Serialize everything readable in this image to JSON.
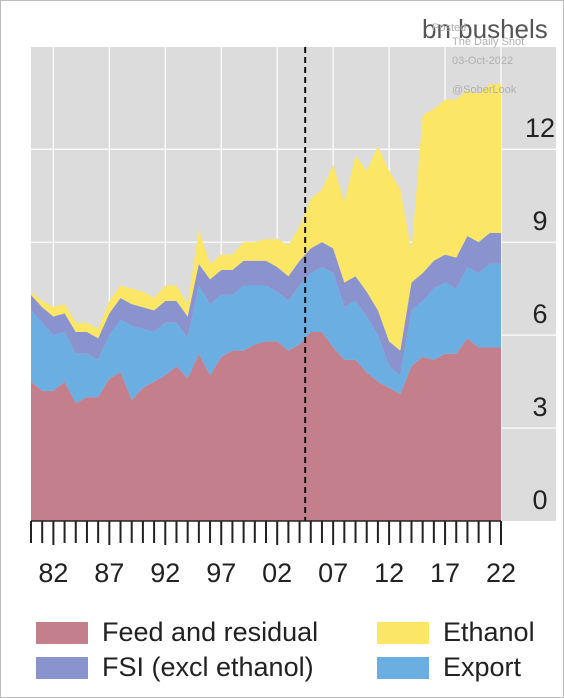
{
  "unit_label": "bn bushels",
  "watermark": {
    "posted": "Posted",
    "source": "The Daily Shot",
    "date": "03-Oct-2022",
    "handle": "@SoberLook"
  },
  "colors": {
    "feed": "#c47f8c",
    "fsi": "#8b93cf",
    "ethanol": "#fbe666",
    "export": "#6aaee2",
    "background": "#dcdcdc",
    "grid": "#ffffff"
  },
  "legend": [
    {
      "key": "feed",
      "label": "Feed and residual"
    },
    {
      "key": "ethanol",
      "label": "Ethanol"
    },
    {
      "key": "fsi",
      "label": "FSI (excl ethanol)"
    },
    {
      "key": "export",
      "label": "Export"
    }
  ],
  "chart_data": {
    "type": "area",
    "stacked": true,
    "x": [
      1980,
      1981,
      1982,
      1983,
      1984,
      1985,
      1986,
      1987,
      1988,
      1989,
      1990,
      1991,
      1992,
      1993,
      1994,
      1995,
      1996,
      1997,
      1998,
      1999,
      2000,
      2001,
      2002,
      2003,
      2004,
      2005,
      2006,
      2007,
      2008,
      2009,
      2010,
      2011,
      2012,
      2013,
      2014,
      2015,
      2016,
      2017,
      2018,
      2019,
      2020,
      2021,
      2022
    ],
    "x_tick_labels": [
      "82",
      "87",
      "92",
      "97",
      "02",
      "07",
      "12",
      "17",
      "22"
    ],
    "x_tick_years": [
      1982,
      1987,
      1992,
      1997,
      2002,
      2007,
      2012,
      2017,
      2022
    ],
    "y_ticks": [
      0,
      3,
      6,
      9,
      12
    ],
    "ylim": [
      0,
      15.3
    ],
    "vline_x": 2004.5,
    "grid": true,
    "series": [
      {
        "name": "Feed and residual",
        "values": [
          4.5,
          4.2,
          4.2,
          4.5,
          3.8,
          4.0,
          4.0,
          4.6,
          4.8,
          3.9,
          4.3,
          4.5,
          4.7,
          5.0,
          4.6,
          5.4,
          4.7,
          5.3,
          5.5,
          5.5,
          5.7,
          5.8,
          5.8,
          5.5,
          5.7,
          6.1,
          6.1,
          5.6,
          5.2,
          5.2,
          4.8,
          4.5,
          4.3,
          4.1,
          5.0,
          5.3,
          5.2,
          5.4,
          5.4,
          5.9,
          5.6,
          5.6,
          5.6
        ]
      },
      {
        "name": "Export",
        "values": [
          2.3,
          2.2,
          1.8,
          1.6,
          1.6,
          1.4,
          1.2,
          1.4,
          1.7,
          2.4,
          1.9,
          1.6,
          1.7,
          1.4,
          1.3,
          2.2,
          2.3,
          2.0,
          1.8,
          2.1,
          1.9,
          1.8,
          1.6,
          1.6,
          1.9,
          1.9,
          2.1,
          2.4,
          1.7,
          1.9,
          1.8,
          1.5,
          0.7,
          0.6,
          1.8,
          1.8,
          2.3,
          2.3,
          2.1,
          2.3,
          2.4,
          2.7,
          2.7
        ]
      },
      {
        "name": "FSI (excl ethanol)",
        "values": [
          0.5,
          0.5,
          0.6,
          0.6,
          0.7,
          0.7,
          0.7,
          0.7,
          0.7,
          0.7,
          0.7,
          0.7,
          0.7,
          0.7,
          0.7,
          0.7,
          0.8,
          0.8,
          0.8,
          0.8,
          0.8,
          0.8,
          0.8,
          0.8,
          0.8,
          0.8,
          0.8,
          0.8,
          0.8,
          0.8,
          0.8,
          0.8,
          0.8,
          0.8,
          0.9,
          0.9,
          0.9,
          0.9,
          1.0,
          1.0,
          1.0,
          1.0,
          1.0
        ]
      },
      {
        "name": "Ethanol",
        "values": [
          0.1,
          0.2,
          0.3,
          0.3,
          0.3,
          0.3,
          0.3,
          0.4,
          0.4,
          0.5,
          0.5,
          0.4,
          0.5,
          0.5,
          0.4,
          1.1,
          0.5,
          0.5,
          0.5,
          0.6,
          0.6,
          0.7,
          0.9,
          1.0,
          1.1,
          1.6,
          1.7,
          2.7,
          2.6,
          3.9,
          3.9,
          5.3,
          5.5,
          5.2,
          1.0,
          5.1,
          4.9,
          5.0,
          5.1,
          4.7,
          4.8,
          4.8,
          4.8
        ]
      }
    ]
  }
}
